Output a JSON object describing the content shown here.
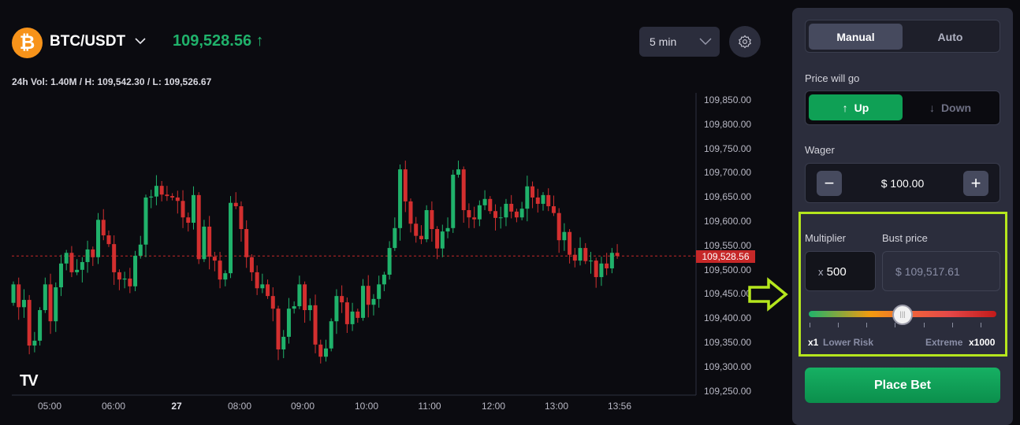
{
  "header": {
    "pair": "BTC/USDT",
    "coin_icon": "bitcoin-icon",
    "price": "109,528.56",
    "price_direction": "up",
    "stats": "24h Vol: 1.40M / H: 109,542.30 / L: 109,526.67",
    "timeframe": "5 min",
    "colors": {
      "up": "#20b26b",
      "down": "#d32f2f"
    }
  },
  "chart_data": {
    "type": "candlestick",
    "ylim": [
      109230,
      109870
    ],
    "y_ticks": [
      "109,850.00",
      "109,800.00",
      "109,750.00",
      "109,700.00",
      "109,650.00",
      "109,600.00",
      "109,550.00",
      "109,500.00",
      "109,450.00",
      "109,400.00",
      "109,350.00",
      "109,300.00",
      "109,250.00"
    ],
    "x_ticks": [
      "05:00",
      "06:00",
      "27",
      "08:00",
      "09:00",
      "10:00",
      "11:00",
      "12:00",
      "13:00",
      "13:56"
    ],
    "current_price_label": "109,528.56",
    "current_price": 109528.56,
    "first_open": 109432,
    "closes": [
      109470,
      109423,
      109438,
      109344,
      109354,
      109417,
      109470,
      109394,
      109464,
      109513,
      109535,
      109495,
      109500,
      109516,
      109542,
      109526,
      109603,
      109571,
      109553,
      109495,
      109480,
      109482,
      109466,
      109529,
      109552,
      109649,
      109651,
      109673,
      109655,
      109652,
      109649,
      109642,
      109608,
      109597,
      109654,
      109522,
      109589,
      109527,
      109519,
      109480,
      109493,
      109638,
      109631,
      109584,
      109526,
      109495,
      109462,
      109470,
      109446,
      109420,
      109336,
      109362,
      109420,
      109425,
      109470,
      109417,
      109427,
      109346,
      109321,
      109338,
      109394,
      109446,
      109433,
      109388,
      109414,
      109401,
      109467,
      109428,
      109440,
      109470,
      109490,
      109545,
      109586,
      109707,
      109641,
      109595,
      109570,
      109563,
      109623,
      109584,
      109544,
      109579,
      109586,
      109696,
      109707,
      109623,
      109608,
      109604,
      109633,
      109646,
      109621,
      109607,
      109608,
      109636,
      109620,
      109608,
      109626,
      109672,
      109649,
      109636,
      109654,
      109631,
      109617,
      109561,
      109578,
      109531,
      109519,
      109545,
      109518,
      109519,
      109485,
      109513,
      109503,
      109535,
      109528.56
    ]
  },
  "panel": {
    "modes": [
      "Manual",
      "Auto"
    ],
    "active_mode": "Manual",
    "direction_label": "Price will go",
    "up_label": "Up",
    "down_label": "Down",
    "selected_direction": "Up",
    "wager_label": "Wager",
    "wager_value": "$ 100.00",
    "minus": "−",
    "plus": "+",
    "multiplier_label": "Multiplier",
    "multiplier_prefix": "x",
    "multiplier_value": "500",
    "bust_label": "Bust price",
    "bust_value": "$ 109,517.61",
    "slider": {
      "min_label": "x1",
      "min_caption": "Lower Risk",
      "max_caption": "Extreme",
      "max_label": "x1000",
      "value": 500,
      "min": 1,
      "max": 1000
    },
    "place_bet": "Place Bet"
  }
}
